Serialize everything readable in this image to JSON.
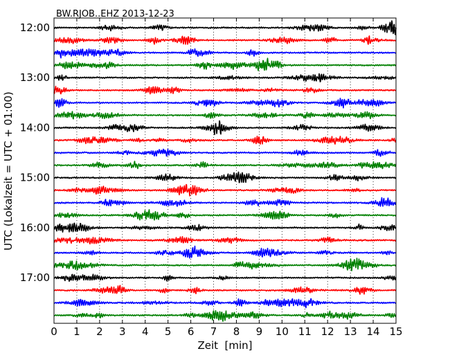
{
  "chart_data": {
    "type": "line",
    "title": "BW.RJOB..EHZ 2013-12-23",
    "xlabel": "Zeit  [min]",
    "ylabel": "UTC (Lokalzeit = UTC + 01:00)",
    "xlim": [
      0,
      15
    ],
    "x_ticks": [
      "0",
      "1",
      "2",
      "3",
      "4",
      "5",
      "6",
      "7",
      "8",
      "9",
      "10",
      "11",
      "12",
      "13",
      "14",
      "15"
    ],
    "y_tick_labels": [
      "12:00",
      "13:00",
      "14:00",
      "15:00",
      "16:00",
      "17:00"
    ],
    "y_tick_rows": [
      0,
      4,
      8,
      12,
      16,
      20
    ],
    "grid": true,
    "trace_count": 24,
    "trace_interval_min": 15,
    "start_time": "12:00",
    "trace_colors": [
      "#000000",
      "#ff0000",
      "#0000ff",
      "#008000"
    ]
  }
}
